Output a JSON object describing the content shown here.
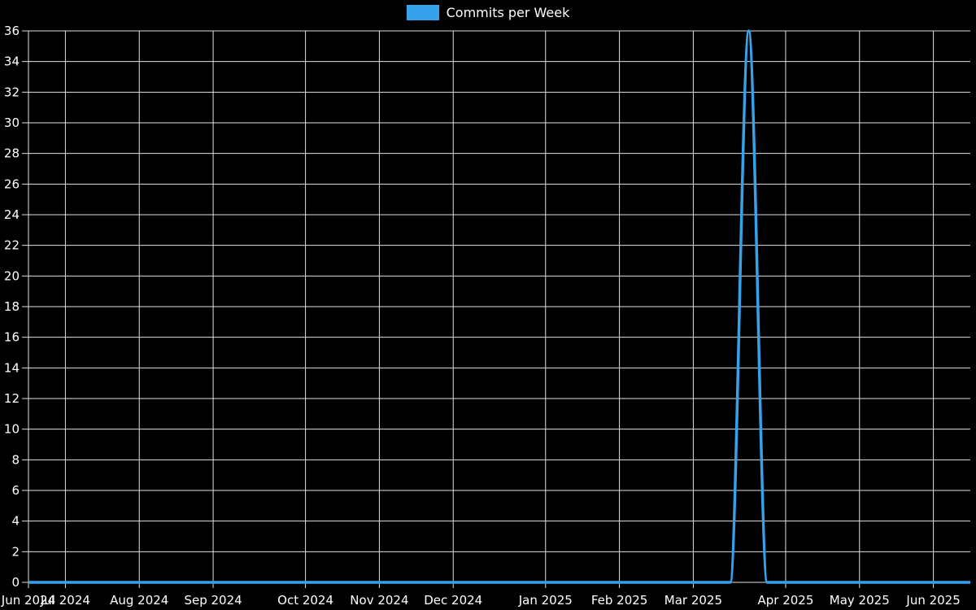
{
  "chart_data": {
    "type": "line",
    "title": "Commits per Week",
    "legend": {
      "position": "top",
      "label": "Commits per Week"
    },
    "background_color": "#000000",
    "grid_color": "#e0e0e0",
    "text_color": "#ffffff",
    "grid": true,
    "series": [
      {
        "name": "Commits per Week",
        "color": "#36a2eb",
        "values": [
          0,
          0,
          0,
          0,
          0,
          0,
          0,
          0,
          0,
          0,
          0,
          0,
          0,
          0,
          0,
          0,
          0,
          0,
          0,
          0,
          0,
          0,
          0,
          0,
          0,
          0,
          0,
          0,
          0,
          0,
          0,
          0,
          0,
          0,
          0,
          0,
          0,
          0,
          0,
          36,
          0,
          0,
          0,
          0,
          0,
          0,
          0,
          0,
          0,
          0,
          0,
          0
        ]
      }
    ],
    "x_axis": {
      "unit": "week",
      "num_points": 52,
      "month_ticks": [
        {
          "week": 0,
          "label": "Jun 2024"
        },
        {
          "week": 2,
          "label": "Jul 2024"
        },
        {
          "week": 6,
          "label": "Aug 2024"
        },
        {
          "week": 10,
          "label": "Sep 2024"
        },
        {
          "week": 15,
          "label": "Oct 2024"
        },
        {
          "week": 19,
          "label": "Nov 2024"
        },
        {
          "week": 23,
          "label": "Dec 2024"
        },
        {
          "week": 28,
          "label": "Jan 2025"
        },
        {
          "week": 32,
          "label": "Feb 2025"
        },
        {
          "week": 36,
          "label": "Mar 2025"
        },
        {
          "week": 41,
          "label": "Apr 2025"
        },
        {
          "week": 45,
          "label": "May 2025"
        },
        {
          "week": 49,
          "label": "Jun 2025"
        }
      ]
    },
    "y_axis": {
      "min": 0,
      "max": 36,
      "step": 2,
      "tick_labels": [
        "0",
        "2",
        "4",
        "6",
        "8",
        "10",
        "12",
        "14",
        "16",
        "18",
        "20",
        "22",
        "24",
        "26",
        "28",
        "30",
        "32",
        "34",
        "36"
      ]
    }
  }
}
